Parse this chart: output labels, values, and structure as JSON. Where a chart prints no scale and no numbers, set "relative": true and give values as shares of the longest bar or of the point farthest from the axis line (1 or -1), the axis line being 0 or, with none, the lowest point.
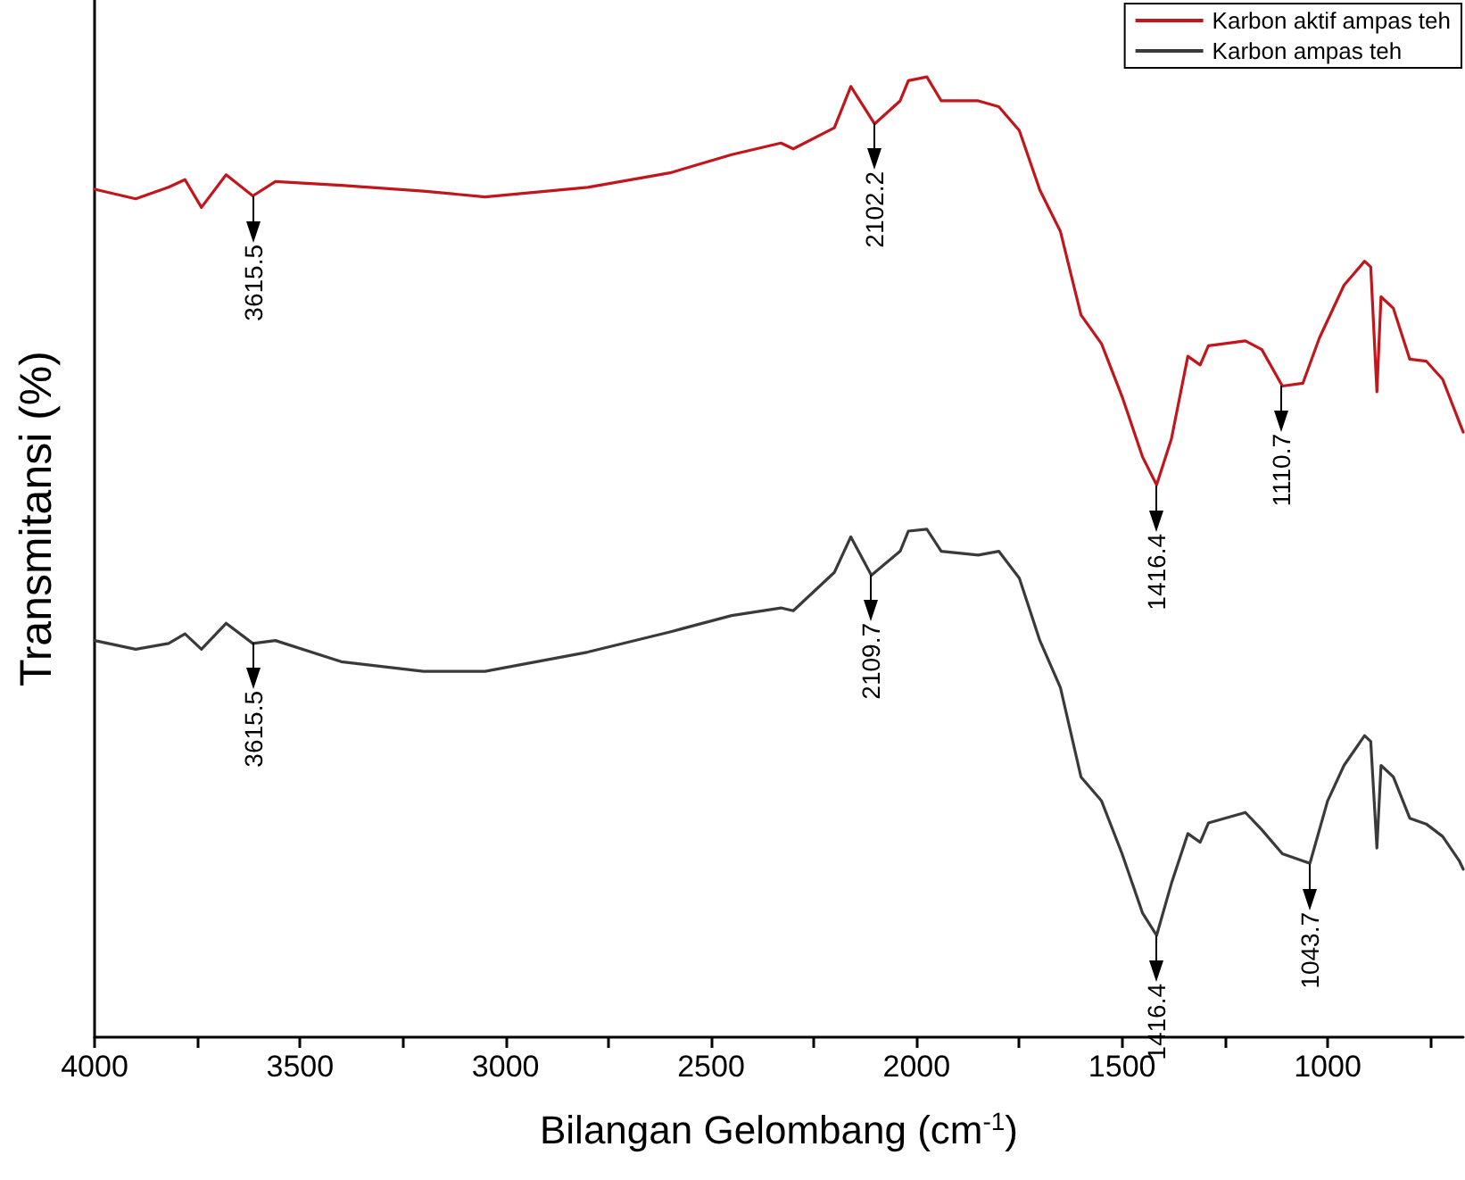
{
  "chart_data": {
    "type": "line",
    "relative": true,
    "xlabel": "Bilangan Gelombang (cm$^{-1}$)",
    "ylabel": "Transmitansi (%)",
    "xlim": [
      4000,
      670
    ],
    "xticks": [
      4000,
      {
        "value": 3750,
        "label": null
      },
      3500,
      {
        "value": 3250,
        "label": null
      },
      3000,
      {
        "value": 2750,
        "label": null
      },
      2500,
      {
        "value": 2250,
        "label": null
      },
      2000,
      {
        "value": 1750,
        "label": null
      },
      1500,
      {
        "value": 1250,
        "label": null
      },
      1000,
      {
        "value": 750,
        "label": null
      }
    ],
    "legend": "top right",
    "grid": false,
    "marker": "none",
    "line_style": "solid",
    "series": [
      {
        "name": "Karbon aktif ampas teh",
        "color": "#c0161c",
        "x": [
          4000,
          3900,
          3820,
          3780,
          3740,
          3680,
          3615,
          3560,
          3400,
          3200,
          3050,
          2800,
          2600,
          2450,
          2330,
          2300,
          2200,
          2160,
          2102,
          2040,
          2020,
          1975,
          1940,
          1850,
          1800,
          1750,
          1700,
          1650,
          1600,
          1550,
          1500,
          1450,
          1416,
          1380,
          1340,
          1310,
          1290,
          1200,
          1160,
          1110,
          1060,
          1020,
          960,
          910,
          895,
          880,
          870,
          840,
          800,
          760,
          720,
          680,
          670
        ],
        "values": [
          0.883,
          0.873,
          0.885,
          0.893,
          0.864,
          0.898,
          0.876,
          0.891,
          0.887,
          0.881,
          0.875,
          0.885,
          0.9,
          0.919,
          0.931,
          0.925,
          0.947,
          0.99,
          0.951,
          0.975,
          0.996,
          1,
          0.975,
          0.975,
          0.969,
          0.944,
          0.882,
          0.839,
          0.752,
          0.722,
          0.667,
          0.604,
          0.575,
          0.623,
          0.709,
          0.7,
          0.72,
          0.725,
          0.716,
          0.678,
          0.681,
          0.728,
          0.783,
          0.808,
          0.802,
          0.672,
          0.771,
          0.759,
          0.706,
          0.704,
          0.685,
          0.641,
          0.63
        ]
      },
      {
        "name": "Karbon ampas teh",
        "color": "#3a3a3a",
        "x": [
          4000,
          3900,
          3820,
          3780,
          3740,
          3680,
          3615,
          3560,
          3400,
          3200,
          3050,
          2800,
          2600,
          2450,
          2330,
          2300,
          2200,
          2160,
          2110,
          2040,
          2020,
          1975,
          1940,
          1850,
          1800,
          1750,
          1700,
          1650,
          1600,
          1550,
          1500,
          1450,
          1416,
          1380,
          1340,
          1310,
          1290,
          1200,
          1160,
          1110,
          1043,
          1000,
          960,
          910,
          895,
          880,
          870,
          840,
          800,
          760,
          720,
          680,
          670
        ],
        "values": [
          0.413,
          0.404,
          0.41,
          0.42,
          0.404,
          0.431,
          0.41,
          0.413,
          0.391,
          0.381,
          0.381,
          0.401,
          0.422,
          0.439,
          0.447,
          0.444,
          0.484,
          0.521,
          0.481,
          0.506,
          0.527,
          0.529,
          0.506,
          0.502,
          0.506,
          0.478,
          0.413,
          0.364,
          0.271,
          0.246,
          0.191,
          0.129,
          0.106,
          0.16,
          0.212,
          0.203,
          0.223,
          0.234,
          0.216,
          0.191,
          0.181,
          0.246,
          0.283,
          0.314,
          0.308,
          0.197,
          0.283,
          0.271,
          0.228,
          0.222,
          0.209,
          0.184,
          0.175
        ]
      }
    ],
    "annotations": [
      {
        "text": "3615.5",
        "x": 3615.5,
        "y": 0.876
      },
      {
        "text": "2102.2",
        "x": 2102.2,
        "y": 0.951
      },
      {
        "text": "1416.4",
        "x": 1416.4,
        "y": 0.575
      },
      {
        "text": "1110.7",
        "x": 1110.7,
        "y": 0.678
      },
      {
        "text": "3615.5",
        "x": 3615.5,
        "y": 0.41
      },
      {
        "text": "2109.7",
        "x": 2109.7,
        "y": 0.481
      },
      {
        "text": "1416.4",
        "x": 1416.4,
        "y": 0.106
      },
      {
        "text": "1043.7",
        "x": 1043.7,
        "y": 0.181
      }
    ]
  }
}
